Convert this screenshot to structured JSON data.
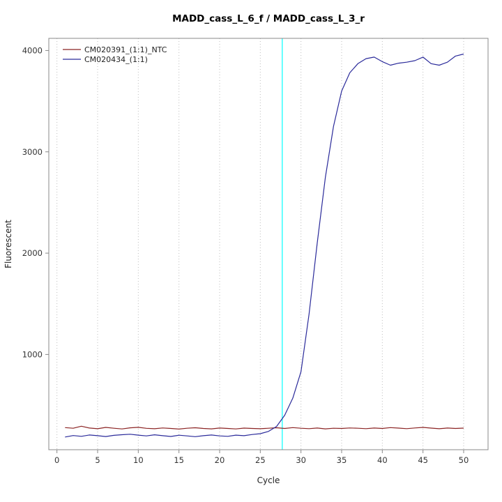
{
  "chart_data": {
    "type": "line",
    "title": "MADD_cass_L_6_f / MADD_cass_L_3_r",
    "xlabel": "Cycle",
    "ylabel": "Fluorescent",
    "xlim": [
      -1,
      53
    ],
    "ylim": [
      60,
      4120
    ],
    "xticks": [
      0,
      5,
      10,
      15,
      20,
      25,
      30,
      35,
      40,
      45,
      50
    ],
    "yticks": [
      1000,
      2000,
      3000,
      4000
    ],
    "grid": "vertical-dotted",
    "grid_color": "#bebebe",
    "legend_position": "top-left",
    "threshold_line": {
      "x": 27.7,
      "color": "#00ffff"
    },
    "x": [
      1,
      2,
      3,
      4,
      5,
      6,
      7,
      8,
      9,
      10,
      11,
      12,
      13,
      14,
      15,
      16,
      17,
      18,
      19,
      20,
      21,
      22,
      23,
      24,
      25,
      26,
      27,
      28,
      29,
      30,
      31,
      32,
      33,
      34,
      35,
      36,
      37,
      38,
      39,
      40,
      41,
      42,
      43,
      44,
      45,
      46,
      47,
      48,
      49,
      50
    ],
    "series": [
      {
        "name": "CM020391_(1:1)_NTC",
        "color": "#8b2323",
        "values": [
          278,
          272,
          292,
          274,
          267,
          280,
          272,
          265,
          276,
          281,
          271,
          267,
          275,
          270,
          264,
          272,
          277,
          270,
          266,
          274,
          270,
          265,
          273,
          270,
          267,
          272,
          277,
          270,
          278,
          272,
          268,
          274,
          266,
          272,
          270,
          275,
          272,
          268,
          274,
          270,
          278,
          273,
          268,
          275,
          280,
          273,
          267,
          274,
          270,
          273
        ]
      },
      {
        "name": "CM020434_(1:1)",
        "color": "#2a2a9a",
        "values": [
          185,
          200,
          192,
          205,
          198,
          190,
          202,
          208,
          213,
          204,
          196,
          207,
          198,
          191,
          203,
          196,
          189,
          198,
          205,
          196,
          192,
          204,
          198,
          210,
          218,
          240,
          290,
          400,
          570,
          830,
          1400,
          2100,
          2750,
          3250,
          3600,
          3780,
          3870,
          3920,
          3935,
          3890,
          3855,
          3875,
          3885,
          3900,
          3935,
          3870,
          3855,
          3885,
          3945,
          3965
        ]
      }
    ]
  }
}
